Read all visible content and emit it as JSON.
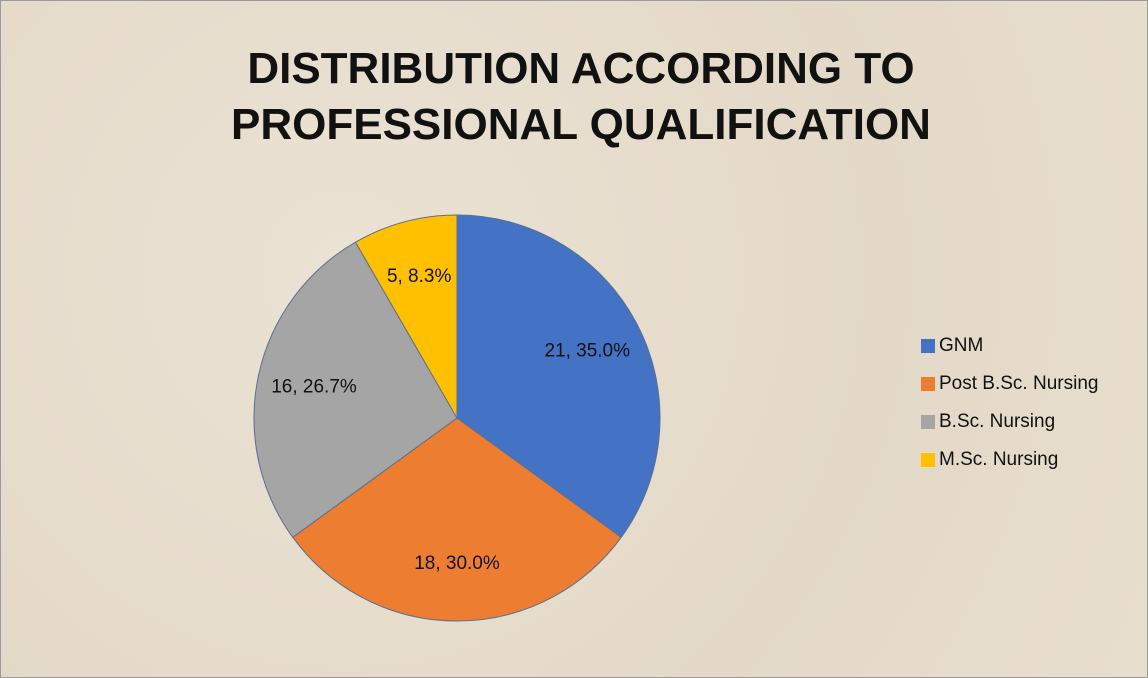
{
  "chart_data": {
    "type": "pie",
    "title": "DISTRIBUTION ACCORDING TO PROFESSIONAL QUALIFICATION",
    "categories": [
      "GNM",
      "Post B.Sc. Nursing",
      "B.Sc. Nursing",
      "M.Sc. Nursing"
    ],
    "values": [
      21,
      18,
      16,
      5
    ],
    "value_labels": [
      "21, 35.0%",
      "18, 30.0%",
      "16, 26.7%",
      "5, 8.3%"
    ],
    "colors": [
      "#4472c4",
      "#ed7d31",
      "#a5a5a5",
      "#ffc000"
    ],
    "legend": "right"
  }
}
